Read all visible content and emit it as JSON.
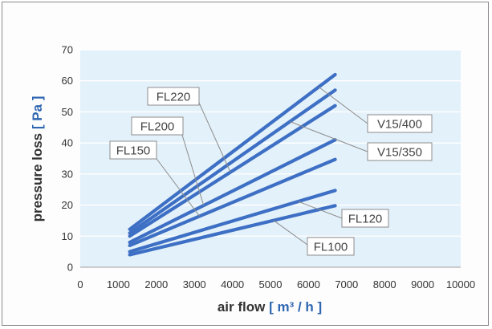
{
  "chart_data": {
    "type": "line",
    "xlabel_main": "air flow",
    "xlabel_unit": "[ m³ / h ]",
    "ylabel_main": "pressure loss",
    "ylabel_unit": "[ Pa ]",
    "xlim": [
      0,
      10000
    ],
    "ylim": [
      0,
      70
    ],
    "x_ticks": [
      "0",
      "1000",
      "2000",
      "3000",
      "4000",
      "5000",
      "6000",
      "7000",
      "8000",
      "9000",
      "10000"
    ],
    "y_ticks": [
      "0",
      "10",
      "20",
      "30",
      "40",
      "50",
      "60",
      "70"
    ],
    "grid": true,
    "colors": {
      "line": "#3d6fc4",
      "plot_bg": "#e3f1fa",
      "grid": "#ffffff"
    },
    "series": [
      {
        "name": "V15/400",
        "x": [
          1300,
          6700
        ],
        "y": [
          12.2,
          62.0
        ]
      },
      {
        "name": "V15/350",
        "x": [
          1300,
          6700
        ],
        "y": [
          11.0,
          57.0
        ]
      },
      {
        "name": "FL220",
        "x": [
          1300,
          6700
        ],
        "y": [
          10.0,
          52.0
        ]
      },
      {
        "name": "FL200",
        "x": [
          1300,
          6700
        ],
        "y": [
          8.0,
          41.0
        ]
      },
      {
        "name": "FL150",
        "x": [
          1300,
          6700
        ],
        "y": [
          7.0,
          34.7
        ]
      },
      {
        "name": "FL120",
        "x": [
          1300,
          6700
        ],
        "y": [
          5.0,
          24.7
        ]
      },
      {
        "name": "FL100",
        "x": [
          1300,
          6700
        ],
        "y": [
          4.0,
          19.8
        ]
      }
    ]
  }
}
